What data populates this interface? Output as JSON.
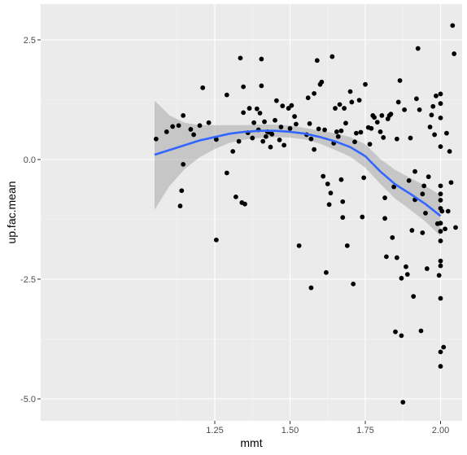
{
  "chart_data": {
    "type": "scatter",
    "xlabel": "mmt",
    "ylabel": "up.fac.mean",
    "xlim": [
      1.03,
      2.05
    ],
    "ylim": [
      -5.25,
      3.0
    ],
    "x_ticks": [
      1.25,
      1.5,
      1.75,
      2.0
    ],
    "x_tick_labels": [
      "1.25",
      "1.50",
      "1.75",
      "2.00"
    ],
    "y_ticks": [
      2.5,
      0.0,
      -2.5,
      -5.0
    ],
    "y_tick_labels": [
      "2.5",
      "0.0",
      "-2.5",
      "-5.0"
    ],
    "grid": true,
    "colors": {
      "panel": "#ebebeb",
      "grid_major": "#ffffff",
      "grid_minor": "#f5f5f5",
      "points": "#000000",
      "smooth_line": "#3366ff",
      "confidence_band": "#999999"
    },
    "points": [
      [
        1.055,
        0.43
      ],
      [
        1.09,
        0.58
      ],
      [
        1.11,
        0.69
      ],
      [
        1.13,
        0.71
      ],
      [
        1.135,
        -0.97
      ],
      [
        1.14,
        -0.65
      ],
      [
        1.145,
        -0.1
      ],
      [
        1.145,
        0.92
      ],
      [
        1.17,
        0.63
      ],
      [
        1.18,
        0.52
      ],
      [
        1.2,
        0.71
      ],
      [
        1.21,
        1.5
      ],
      [
        1.23,
        0.77
      ],
      [
        1.255,
        0.42
      ],
      [
        1.255,
        -1.68
      ],
      [
        1.29,
        1.35
      ],
      [
        1.29,
        -0.28
      ],
      [
        1.31,
        0.17
      ],
      [
        1.32,
        -0.78
      ],
      [
        1.33,
        0.38
      ],
      [
        1.335,
        2.12
      ],
      [
        1.34,
        -0.9
      ],
      [
        1.345,
        1.52
      ],
      [
        1.345,
        0.98
      ],
      [
        1.35,
        -0.93
      ],
      [
        1.36,
        0.56
      ],
      [
        1.365,
        1.07
      ],
      [
        1.375,
        0.45
      ],
      [
        1.38,
        0.77
      ],
      [
        1.39,
        1.06
      ],
      [
        1.395,
        0.62
      ],
      [
        1.4,
        0.97
      ],
      [
        1.405,
        2.1
      ],
      [
        1.405,
        1.54
      ],
      [
        1.41,
        0.38
      ],
      [
        1.415,
        0.79
      ],
      [
        1.42,
        0.48
      ],
      [
        1.425,
        0.58
      ],
      [
        1.43,
        0.57
      ],
      [
        1.435,
        0.26
      ],
      [
        1.44,
        0.53
      ],
      [
        1.45,
        0.82
      ],
      [
        1.455,
        1.23
      ],
      [
        1.465,
        0.41
      ],
      [
        1.47,
        0.68
      ],
      [
        1.475,
        1.12
      ],
      [
        1.48,
        0.3
      ],
      [
        1.495,
        1.07
      ],
      [
        1.5,
        0.65
      ],
      [
        1.505,
        1.13
      ],
      [
        1.515,
        0.9
      ],
      [
        1.52,
        0.74
      ],
      [
        1.53,
        -1.8
      ],
      [
        1.555,
        0.52
      ],
      [
        1.56,
        1.29
      ],
      [
        1.565,
        0.75
      ],
      [
        1.57,
        0.43
      ],
      [
        1.57,
        -2.68
      ],
      [
        1.58,
        0.21
      ],
      [
        1.58,
        1.38
      ],
      [
        1.59,
        2.07
      ],
      [
        1.595,
        0.64
      ],
      [
        1.6,
        1.57
      ],
      [
        1.605,
        1.62
      ],
      [
        1.61,
        -0.35
      ],
      [
        1.615,
        0.62
      ],
      [
        1.62,
        -2.36
      ],
      [
        1.625,
        -0.51
      ],
      [
        1.63,
        -0.94
      ],
      [
        1.635,
        -0.7
      ],
      [
        1.64,
        2.15
      ],
      [
        1.645,
        0.34
      ],
      [
        1.65,
        1.07
      ],
      [
        1.655,
        0.58
      ],
      [
        1.66,
        0.48
      ],
      [
        1.665,
        1.15
      ],
      [
        1.67,
        0.6
      ],
      [
        1.67,
        -0.42
      ],
      [
        1.675,
        -0.88
      ],
      [
        1.675,
        -1.21
      ],
      [
        1.68,
        1.07
      ],
      [
        1.685,
        0.76
      ],
      [
        1.69,
        -1.8
      ],
      [
        1.7,
        1.42
      ],
      [
        1.705,
        1.2
      ],
      [
        1.71,
        -2.6
      ],
      [
        1.715,
        0.37
      ],
      [
        1.72,
        0.55
      ],
      [
        1.73,
        1.24
      ],
      [
        1.735,
        0.57
      ],
      [
        1.74,
        -1.2
      ],
      [
        1.745,
        -0.38
      ],
      [
        1.75,
        1.57
      ],
      [
        1.76,
        0.67
      ],
      [
        1.765,
        0.32
      ],
      [
        1.77,
        0.65
      ],
      [
        1.775,
        0.92
      ],
      [
        1.78,
        0.88
      ],
      [
        1.79,
        0.78
      ],
      [
        1.8,
        0.58
      ],
      [
        1.805,
        0.92
      ],
      [
        1.81,
        0.46
      ],
      [
        1.815,
        -0.8
      ],
      [
        1.815,
        -1.23
      ],
      [
        1.82,
        -2.03
      ],
      [
        1.825,
        0.85
      ],
      [
        1.83,
        0.92
      ],
      [
        1.835,
        0.95
      ],
      [
        1.84,
        -1.63
      ],
      [
        1.845,
        -0.57
      ],
      [
        1.85,
        -3.6
      ],
      [
        1.855,
        -2.05
      ],
      [
        1.855,
        0.43
      ],
      [
        1.86,
        1.2
      ],
      [
        1.865,
        1.65
      ],
      [
        1.87,
        -2.48
      ],
      [
        1.87,
        -3.68
      ],
      [
        1.875,
        -5.07
      ],
      [
        1.88,
        1.04
      ],
      [
        1.885,
        -2.24
      ],
      [
        1.89,
        -2.4
      ],
      [
        1.895,
        -0.44
      ],
      [
        1.9,
        0.45
      ],
      [
        1.905,
        -1.48
      ],
      [
        1.91,
        -2.86
      ],
      [
        1.915,
        -0.84
      ],
      [
        1.915,
        -0.25
      ],
      [
        1.92,
        1.27
      ],
      [
        1.925,
        2.32
      ],
      [
        1.93,
        1.04
      ],
      [
        1.935,
        -3.58
      ],
      [
        1.94,
        -0.72
      ],
      [
        1.94,
        -1.53
      ],
      [
        1.945,
        -0.55
      ],
      [
        1.95,
        -1.12
      ],
      [
        1.955,
        -2.28
      ],
      [
        1.96,
        -0.36
      ],
      [
        1.965,
        0.68
      ],
      [
        1.97,
        0.93
      ],
      [
        1.975,
        1.11
      ],
      [
        1.98,
        0.52
      ],
      [
        1.985,
        1.33
      ],
      [
        1.99,
        -1.34
      ],
      [
        1.995,
        -2.42
      ],
      [
        2.0,
        0.27
      ],
      [
        2.005,
        -1.08
      ],
      [
        2.01,
        -3.92
      ],
      [
        2.015,
        -1.45
      ],
      [
        2.02,
        0.55
      ],
      [
        2.025,
        -1.08
      ],
      [
        2.03,
        0.17
      ],
      [
        2.035,
        -0.48
      ],
      [
        2.04,
        2.8
      ],
      [
        2.045,
        2.21
      ],
      [
        2.05,
        -1.42
      ],
      [
        2.0,
        1.37
      ],
      [
        2.0,
        1.17
      ],
      [
        2.0,
        0.87
      ],
      [
        2.0,
        -0.55
      ],
      [
        2.0,
        -0.72
      ],
      [
        2.0,
        -0.85
      ],
      [
        2.0,
        -1.02
      ],
      [
        2.0,
        -1.33
      ],
      [
        2.0,
        -1.5
      ],
      [
        2.0,
        -1.7
      ],
      [
        2.0,
        -2.12
      ],
      [
        2.0,
        -2.22
      ],
      [
        2.0,
        -2.9
      ],
      [
        2.0,
        -4.02
      ],
      [
        2.0,
        -4.32
      ]
    ],
    "smooth": {
      "method": "loess",
      "x": [
        1.05,
        1.1,
        1.15,
        1.2,
        1.25,
        1.3,
        1.35,
        1.4,
        1.45,
        1.5,
        1.55,
        1.6,
        1.65,
        1.7,
        1.75,
        1.8,
        1.85,
        1.9,
        1.95,
        2.0
      ],
      "y": [
        0.1,
        0.2,
        0.3,
        0.4,
        0.47,
        0.54,
        0.58,
        0.6,
        0.6,
        0.58,
        0.54,
        0.47,
        0.38,
        0.26,
        0.07,
        -0.25,
        -0.52,
        -0.72,
        -0.93,
        -1.18
      ],
      "lower": [
        -1.05,
        -0.55,
        -0.2,
        0.05,
        0.22,
        0.35,
        0.42,
        0.45,
        0.47,
        0.46,
        0.42,
        0.33,
        0.2,
        0.06,
        -0.17,
        -0.51,
        -0.82,
        -1.05,
        -1.3,
        -1.6
      ],
      "upper": [
        1.23,
        0.92,
        0.77,
        0.72,
        0.72,
        0.72,
        0.72,
        0.73,
        0.73,
        0.71,
        0.66,
        0.6,
        0.55,
        0.47,
        0.32,
        0.01,
        -0.22,
        -0.39,
        -0.55,
        -0.75
      ]
    }
  }
}
